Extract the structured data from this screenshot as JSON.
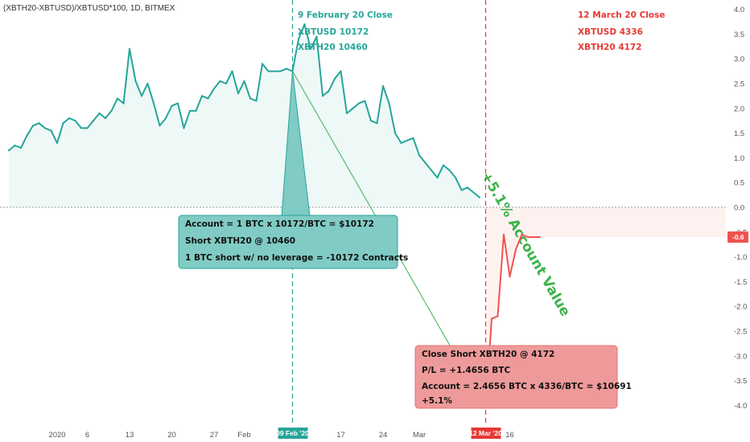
{
  "chart_data": {
    "type": "line",
    "title": "(XBTH20-XBTUSD)/XBTUSD*100, 1D, BITMEX",
    "y_ticks": [
      "4.0",
      "3.5",
      "3.0",
      "2.5",
      "2.0",
      "1.5",
      "1.0",
      "0.5",
      "0.0",
      "-0.5",
      "-1.0",
      "-1.5",
      "-2.0",
      "-2.5",
      "-3.0",
      "-3.5",
      "-4.0"
    ],
    "ylim": [
      -4.2,
      4.2
    ],
    "x_ticks": [
      "2020",
      "6",
      "13",
      "20",
      "27",
      "Feb",
      "17",
      "24",
      "Mar",
      "16"
    ],
    "last_value_label": "-0.6",
    "series": [
      {
        "color": "#26a69a",
        "x": [
          "2019-12-24",
          "2019-12-25",
          "2019-12-26",
          "2019-12-27",
          "2019-12-28",
          "2019-12-29",
          "2019-12-30",
          "2019-12-31",
          "2020-01-01",
          "2020-01-02",
          "2020-01-03",
          "2020-01-04",
          "2020-01-05",
          "2020-01-06",
          "2020-01-07",
          "2020-01-08",
          "2020-01-09",
          "2020-01-10",
          "2020-01-11",
          "2020-01-12",
          "2020-01-13",
          "2020-01-14",
          "2020-01-15",
          "2020-01-16",
          "2020-01-17",
          "2020-01-18",
          "2020-01-19",
          "2020-01-20",
          "2020-01-21",
          "2020-01-22",
          "2020-01-23",
          "2020-01-24",
          "2020-01-25",
          "2020-01-26",
          "2020-01-27",
          "2020-01-28",
          "2020-01-29",
          "2020-01-30",
          "2020-01-31",
          "2020-02-01",
          "2020-02-02",
          "2020-02-03",
          "2020-02-04",
          "2020-02-05",
          "2020-02-06",
          "2020-02-07",
          "2020-02-08",
          "2020-02-09",
          "2020-02-10",
          "2020-02-11",
          "2020-02-12",
          "2020-02-13",
          "2020-02-14",
          "2020-02-15",
          "2020-02-16",
          "2020-02-17",
          "2020-02-18",
          "2020-02-19",
          "2020-02-20",
          "2020-02-21",
          "2020-02-22",
          "2020-02-23",
          "2020-02-24",
          "2020-02-25",
          "2020-02-26",
          "2020-02-27",
          "2020-02-28",
          "2020-02-29",
          "2020-03-01",
          "2020-03-02",
          "2020-03-03",
          "2020-03-04",
          "2020-03-05",
          "2020-03-06",
          "2020-03-07",
          "2020-03-08",
          "2020-03-09",
          "2020-03-10",
          "2020-03-11"
        ],
        "values": [
          1.15,
          1.25,
          1.2,
          1.45,
          1.65,
          1.7,
          1.6,
          1.55,
          1.3,
          1.7,
          1.8,
          1.75,
          1.6,
          1.6,
          1.75,
          1.9,
          1.8,
          1.95,
          2.2,
          2.1,
          3.2,
          2.55,
          2.25,
          2.5,
          2.1,
          1.65,
          1.8,
          2.05,
          2.1,
          1.6,
          1.95,
          1.95,
          2.25,
          2.2,
          2.4,
          2.55,
          2.5,
          2.75,
          2.3,
          2.55,
          2.2,
          2.15,
          2.9,
          2.75,
          2.75,
          2.75,
          2.8,
          2.75,
          3.4,
          3.7,
          3.2,
          3.45,
          2.25,
          2.35,
          2.6,
          2.75,
          1.9,
          2.0,
          2.1,
          2.15,
          1.75,
          1.7,
          2.45,
          2.1,
          1.5,
          1.3,
          1.35,
          1.4,
          1.05,
          0.9,
          0.75,
          0.6,
          0.85,
          0.75,
          0.6,
          0.35,
          0.4,
          0.3,
          0.2
        ]
      },
      {
        "color": "#ef5350",
        "x": [
          "2020-03-12",
          "2020-03-13",
          "2020-03-14",
          "2020-03-15",
          "2020-03-16",
          "2020-03-17",
          "2020-03-18",
          "2020-03-19",
          "2020-03-20",
          "2020-03-21"
        ],
        "values": [
          -4.05,
          -2.25,
          -2.2,
          -0.55,
          -1.4,
          -0.85,
          -0.55,
          -0.6,
          -0.6,
          -0.6
        ]
      }
    ],
    "vertical_markers": [
      {
        "x": "2020-02-09",
        "label": "09 Feb '20",
        "color": "#26a69a"
      },
      {
        "x": "2020-03-12",
        "label": "12 Mar '20",
        "color": "#e53935"
      }
    ],
    "annotations": {
      "feb": {
        "lines": [
          "9 February 20 Close",
          "XBTUSD 10172",
          "XBTH20 10460"
        ],
        "color": "#26a69a"
      },
      "mar": {
        "lines": [
          "12 March 20 Close",
          "XBTUSD 4336",
          "XBTH20 4172"
        ],
        "color": "#e53935"
      },
      "diagonal_label": "+5.1% Account Value",
      "open_box": {
        "lines": [
          "Account = 1 BTC x 10172/BTC = $10172",
          "Short XBTH20 @ 10460",
          "1 BTC short w/ no leverage = -10172 Contracts"
        ]
      },
      "close_box": {
        "lines": [
          "Close Short XBTH20 @ 4172",
          "P/L = +1.4656 BTC",
          "Account = 2.4656 BTC x 4336/BTC = $10691",
          "+5.1%"
        ]
      }
    }
  }
}
